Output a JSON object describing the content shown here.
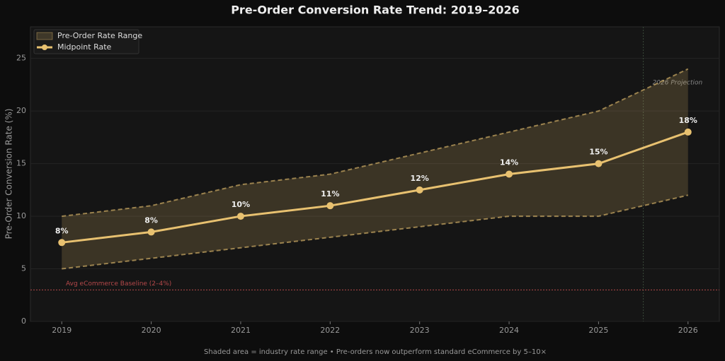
{
  "chart_data": {
    "type": "line",
    "title": "Pre-Order Conversion Rate Trend: 2019–2026",
    "ylabel": "Pre-Order Conversion Rate (%)",
    "footnote": "Shaded area = industry rate range  •  Pre-orders now outperform standard eCommerce by 5–10×",
    "x": [
      2019,
      2020,
      2021,
      2022,
      2023,
      2024,
      2025,
      2026
    ],
    "xlim": [
      2018.65,
      2026.35
    ],
    "xticks": [
      2019,
      2020,
      2021,
      2022,
      2023,
      2024,
      2025,
      2026
    ],
    "ylim": [
      0,
      28
    ],
    "yticks": [
      0,
      5,
      10,
      15,
      20,
      25
    ],
    "grid": true,
    "legend": "upper left",
    "range": {
      "name": "Pre-Order Rate Range",
      "color": "#e8c170",
      "lower": [
        5,
        6,
        7,
        8,
        9,
        10,
        10,
        12
      ],
      "upper": [
        10,
        11,
        13,
        14,
        16,
        18,
        20,
        24
      ]
    },
    "series": [
      {
        "name": "Midpoint Rate",
        "color": "#e8c170",
        "values": [
          7.5,
          8.5,
          10,
          11,
          12.5,
          14,
          15,
          18
        ],
        "value_labels": [
          "8%",
          "8%",
          "10%",
          "11%",
          "12%",
          "14%",
          "15%",
          "18%"
        ]
      }
    ],
    "baseline": {
      "value": 3,
      "label": "Avg eCommerce Baseline (2–4%)",
      "color": "#b5484a"
    },
    "projection": {
      "x": 2025.5,
      "label": "2026 Projection"
    }
  }
}
